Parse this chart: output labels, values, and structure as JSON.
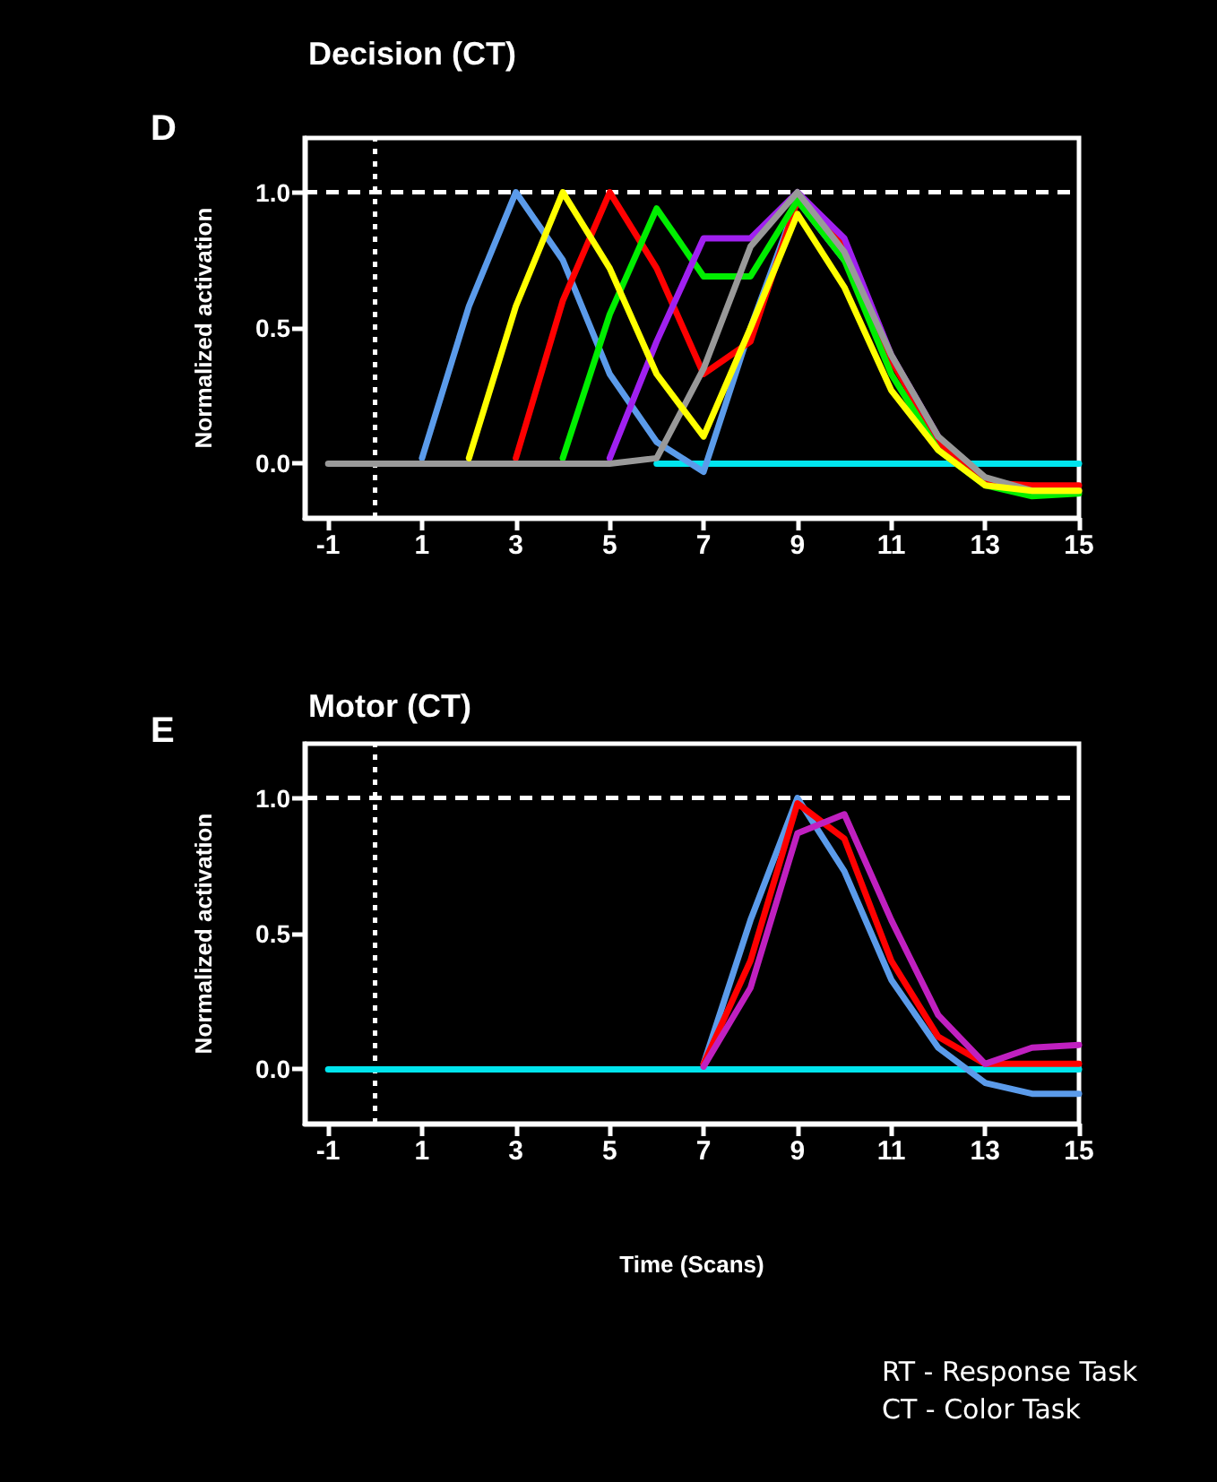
{
  "chart_data": [
    {
      "type": "line",
      "title": "Decision (CT)",
      "ylabel": "Normalized activation",
      "annotations": [
        "D"
      ],
      "x": [
        -1,
        0,
        1,
        2,
        3,
        4,
        5,
        6,
        7,
        8,
        9,
        10,
        11,
        12,
        13,
        14,
        15
      ],
      "xlim": [
        -1.5,
        15
      ],
      "xticks": [
        -1,
        1,
        3,
        5,
        7,
        9,
        11,
        13,
        15
      ],
      "ylim": [
        -0.2,
        1.2
      ],
      "yticks": [
        {
          "value": 0,
          "label": "0.0"
        },
        {
          "value": 0.5,
          "label": "0.5"
        },
        {
          "value": 1,
          "label": "1.0"
        }
      ],
      "marker": "none",
      "line_style": "solid",
      "grid": false,
      "ref_lines": [
        {
          "axis": "x",
          "value": 0,
          "color": "#ffffff",
          "line_style": "dotted"
        },
        {
          "axis": "y",
          "value": 1,
          "color": "#ffffff",
          "line_style": "dashed"
        }
      ],
      "series": [
        {
          "color": "#00e5ee",
          "values": [
            null,
            null,
            null,
            null,
            null,
            null,
            null,
            0,
            0,
            0,
            0,
            0,
            0,
            0,
            0,
            0,
            0
          ]
        },
        {
          "color": "#5b9bea",
          "values": [
            null,
            null,
            0.02,
            0.58,
            1.0,
            0.75,
            0.33,
            0.08,
            -0.03,
            0.5,
            0.97,
            0.75,
            null,
            null,
            null,
            null,
            null
          ]
        },
        {
          "color": "#ff0000",
          "values": [
            null,
            null,
            null,
            null,
            0.02,
            0.6,
            1.0,
            0.72,
            0.33,
            0.45,
            0.97,
            0.8,
            0.38,
            0.08,
            -0.07,
            -0.08,
            -0.08
          ]
        },
        {
          "color": "#00ee00",
          "values": [
            null,
            null,
            null,
            null,
            null,
            0.02,
            0.55,
            0.94,
            0.69,
            0.69,
            0.97,
            0.75,
            0.33,
            0.05,
            -0.08,
            -0.12,
            -0.11
          ]
        },
        {
          "color": "#a020f0",
          "values": [
            null,
            null,
            null,
            null,
            null,
            null,
            0.02,
            0.45,
            0.83,
            0.83,
            1.0,
            0.83,
            0.4,
            0.1,
            null,
            null,
            null
          ]
        },
        {
          "color": "#999999",
          "values": [
            0,
            0,
            0,
            0,
            0,
            0,
            0,
            0.02,
            0.35,
            0.8,
            1.0,
            0.78,
            0.4,
            0.1,
            -0.05,
            -0.1,
            -0.1
          ]
        },
        {
          "color": "#ffff00",
          "values": [
            null,
            null,
            null,
            0.02,
            0.58,
            1.0,
            0.72,
            0.33,
            0.1,
            0.5,
            0.92,
            0.65,
            0.27,
            0.05,
            -0.08,
            -0.1,
            -0.1
          ]
        }
      ]
    },
    {
      "type": "line",
      "title": "Motor (CT)",
      "ylabel": "Normalized activation",
      "xlabel": "Time (Scans)",
      "annotations": [
        "E",
        "RT - Response Task",
        "CT - Color Task"
      ],
      "x": [
        -1,
        0,
        1,
        2,
        3,
        4,
        5,
        6,
        7,
        8,
        9,
        10,
        11,
        12,
        13,
        14,
        15
      ],
      "xlim": [
        -1.5,
        15
      ],
      "xticks": [
        -1,
        1,
        3,
        5,
        7,
        9,
        11,
        13,
        15
      ],
      "ylim": [
        -0.2,
        1.2
      ],
      "yticks": [
        {
          "value": 0,
          "label": "0.0"
        },
        {
          "value": 0.5,
          "label": "0.5"
        },
        {
          "value": 1,
          "label": "1.0"
        }
      ],
      "marker": "none",
      "line_style": "solid",
      "grid": false,
      "ref_lines": [
        {
          "axis": "x",
          "value": 0,
          "color": "#ffffff",
          "line_style": "dotted"
        },
        {
          "axis": "y",
          "value": 1,
          "color": "#ffffff",
          "line_style": "dashed"
        }
      ],
      "series": [
        {
          "color": "#00e5ee",
          "values": [
            0,
            0,
            0,
            0,
            0,
            0,
            0,
            0,
            0,
            0,
            0,
            0,
            0,
            0,
            0,
            0,
            0
          ]
        },
        {
          "color": "#5b9bea",
          "values": [
            null,
            null,
            null,
            null,
            null,
            null,
            null,
            null,
            0.02,
            0.55,
            1.0,
            0.73,
            0.33,
            0.08,
            -0.05,
            -0.09,
            -0.09
          ]
        },
        {
          "color": "#ff0000",
          "values": [
            null,
            null,
            null,
            null,
            null,
            null,
            null,
            null,
            0.02,
            0.4,
            0.98,
            0.85,
            0.4,
            0.12,
            0.02,
            0.02,
            0.02
          ]
        },
        {
          "color": "#c020c0",
          "values": [
            null,
            null,
            null,
            null,
            null,
            null,
            null,
            null,
            0.01,
            0.3,
            0.87,
            0.94,
            0.55,
            0.2,
            0.02,
            0.08,
            0.09
          ]
        }
      ]
    }
  ]
}
